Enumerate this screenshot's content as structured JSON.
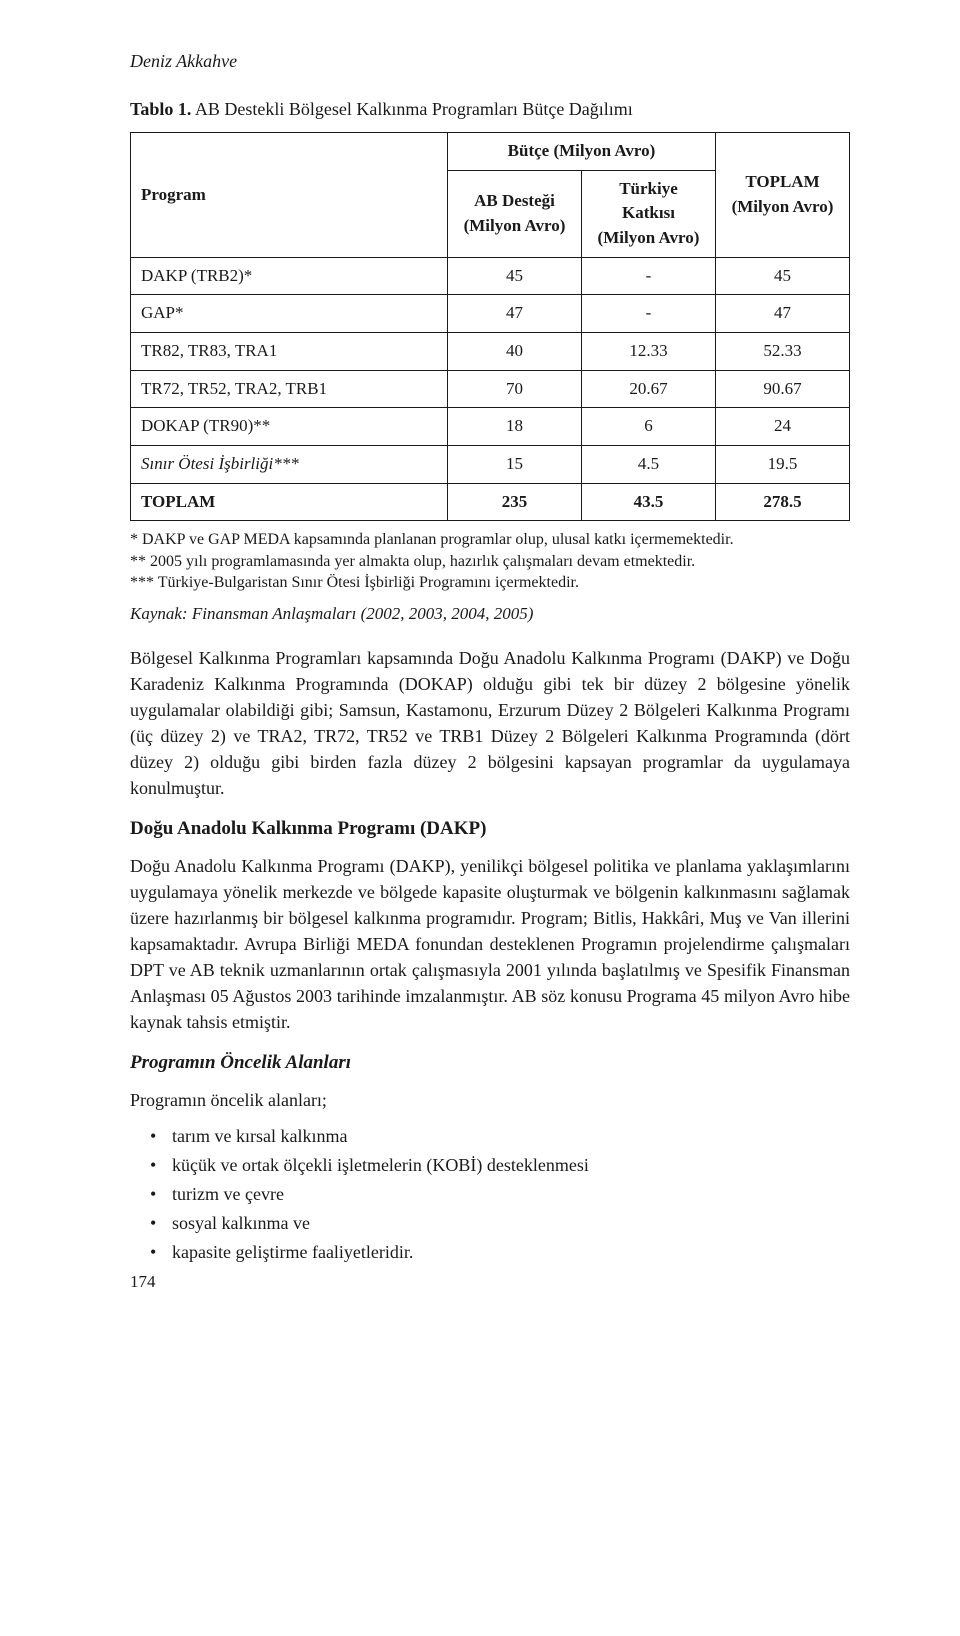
{
  "author": "Deniz Akkahve",
  "table": {
    "title_prefix": "Tablo 1.",
    "title_rest": " AB Destekli Bölgesel Kalkınma Programları Bütçe Dağılımı",
    "header": {
      "program": "Program",
      "butce_group": "Bütçe (Milyon Avro)",
      "ab_destegi": "AB Desteği (Milyon Avro)",
      "turkiye_katkisi": "Türkiye Katkısı (Milyon Avro)",
      "toplam": "TOPLAM (Milyon Avro)"
    },
    "rows": [
      {
        "program": "DAKP (TRB2)*",
        "ab": "45",
        "tk": "-",
        "top": "45"
      },
      {
        "program": "GAP*",
        "ab": "47",
        "tk": "-",
        "top": "47"
      },
      {
        "program": "TR82, TR83, TRA1",
        "ab": "40",
        "tk": "12.33",
        "top": "52.33"
      },
      {
        "program": "TR72, TR52, TRA2, TRB1",
        "ab": "70",
        "tk": "20.67",
        "top": "90.67"
      },
      {
        "program": "DOKAP (TR90)**",
        "ab": "18",
        "tk": "6",
        "top": "24"
      },
      {
        "program": "Sınır Ötesi İşbirliği***",
        "ab": "15",
        "tk": "4.5",
        "top": "19.5",
        "italic": true
      },
      {
        "program": "TOPLAM",
        "ab": "235",
        "tk": "43.5",
        "top": "278.5",
        "bold": true
      }
    ]
  },
  "footnotes": [
    "* DAKP ve GAP MEDA kapsamında planlanan programlar olup, ulusal katkı içermemektedir.",
    "** 2005 yılı programlamasında yer almakta olup, hazırlık çalışmaları devam etmektedir.",
    "*** Türkiye-Bulgaristan Sınır Ötesi İşbirliği Programını içermektedir."
  ],
  "source": "Kaynak: Finansman Anlaşmaları (2002, 2003, 2004, 2005)",
  "para1": "Bölgesel Kalkınma Programları kapsamında Doğu Anadolu Kalkınma Programı (DAKP) ve Doğu Karadeniz Kalkınma Programında (DOKAP) olduğu gibi tek bir düzey 2 bölgesine yönelik uygulamalar olabildiği gibi; Samsun, Kastamonu, Erzurum Düzey 2 Bölgeleri Kalkınma Programı (üç düzey 2) ve TRA2, TR72, TR52 ve TRB1 Düzey 2 Bölgeleri Kalkınma Programında (dört düzey 2) olduğu gibi birden fazla düzey 2 bölgesini kapsayan programlar da uygulamaya konulmuştur.",
  "heading1": "Doğu Anadolu Kalkınma Programı (DAKP)",
  "para2": "Doğu Anadolu Kalkınma Programı (DAKP), yenilikçi bölgesel politika ve planlama yaklaşımlarını uygulamaya yönelik merkezde ve bölgede kapasite oluşturmak ve bölgenin kalkınmasını sağlamak üzere hazırlanmış bir bölgesel kalkınma programıdır. Program; Bitlis, Hakkâri, Muş ve Van illerini kapsamaktadır. Avrupa Birliği MEDA fonundan desteklenen Programın projelendirme çalışmaları DPT ve AB teknik uzmanlarının ortak çalışmasıyla 2001 yılında başlatılmış ve Spesifik Finansman Anlaşması 05 Ağustos 2003 tarihinde imzalanmıştır. AB söz konusu Programa 45 milyon Avro hibe kaynak tahsis etmiştir.",
  "heading2": "Programın Öncelik Alanları",
  "para3": "Programın öncelik alanları;",
  "bullets": [
    "tarım ve kırsal kalkınma",
    "küçük ve ortak ölçekli işletmelerin (KOBİ) desteklenmesi",
    "turizm ve çevre",
    "sosyal kalkınma ve",
    "kapasite geliştirme faaliyetleridir."
  ],
  "pagenum": "174"
}
